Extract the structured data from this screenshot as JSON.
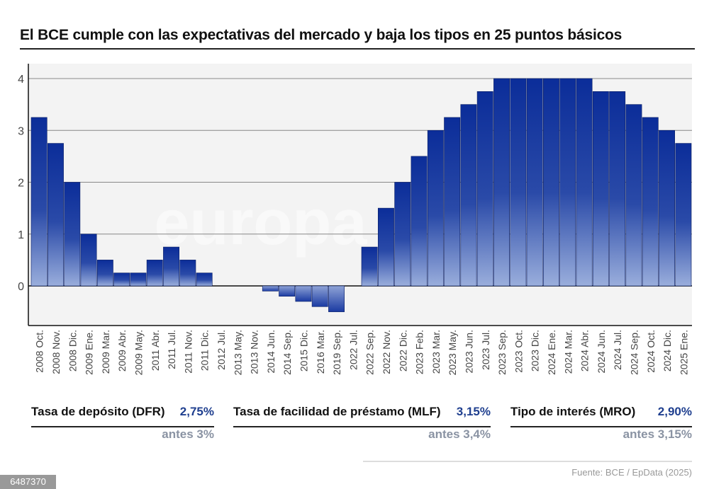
{
  "title": "El BCE cumple con las expectativas del mercado y baja los tipos en 25 puntos básicos",
  "watermark": "europa press",
  "chart_data": {
    "type": "bar",
    "title": "El BCE cumple con las expectativas del mercado y baja los tipos en 25 puntos básicos",
    "xlabel": "",
    "ylabel": "",
    "ylim": [
      -0.75,
      4.3
    ],
    "yticks": [
      "0",
      "1",
      "2",
      "3",
      "4"
    ],
    "grid": true,
    "bar_color_top": "#0b2d99",
    "bar_color_bottom": "#8fa3d6",
    "categories": [
      "2008 Oct.",
      "2008 Nov.",
      "2008 Dic.",
      "2009 Ene.",
      "2009 Mar.",
      "2009 Abr.",
      "2009 May.",
      "2011 Abr.",
      "2011 Jul.",
      "2011 Nov.",
      "2011 Dic.",
      "2012 Jul.",
      "2013 May.",
      "2013 Nov.",
      "2014 Jun.",
      "2014 Sep.",
      "2015 Dic.",
      "2016 Mar.",
      "2019 Sep.",
      "2022 Jul.",
      "2022 Sep.",
      "2022 Nov.",
      "2022 Dic.",
      "2023 Feb.",
      "2023 Mar.",
      "2023 May.",
      "2023 Jun.",
      "2023 Jul.",
      "2023 Sep.",
      "2023 Oct.",
      "2023 Dic.",
      "2024 Ene.",
      "2024 Mar.",
      "2024 Abr.",
      "2024 Jun.",
      "2024 Jul.",
      "2024 Sep.",
      "2024 Oct.",
      "2024 Dic.",
      "2025 Ene."
    ],
    "values": [
      3.25,
      2.75,
      2,
      1,
      0.5,
      0.25,
      0.25,
      0.5,
      0.75,
      0.5,
      0.25,
      0,
      0,
      0,
      -0.1,
      -0.2,
      -0.3,
      -0.4,
      -0.5,
      0,
      0.75,
      1.5,
      2,
      2.5,
      3,
      3.25,
      3.5,
      3.75,
      4,
      4,
      4,
      4,
      4,
      4,
      3.75,
      3.75,
      3.5,
      3.25,
      3,
      2.75
    ]
  },
  "kpis": [
    {
      "label": "Tasa de depósito (DFR)",
      "value": "2,75%",
      "previous": "antes 3%"
    },
    {
      "label": "Tasa de facilidad de préstamo (MLF)",
      "value": "3,15%",
      "previous": "antes 3,4%"
    },
    {
      "label": "Tipo de interés (MRO)",
      "value": "2,90%",
      "previous": "antes 3,15%"
    }
  ],
  "source": "Fuente: BCE / EpData (2025)",
  "image_id": "6487370"
}
